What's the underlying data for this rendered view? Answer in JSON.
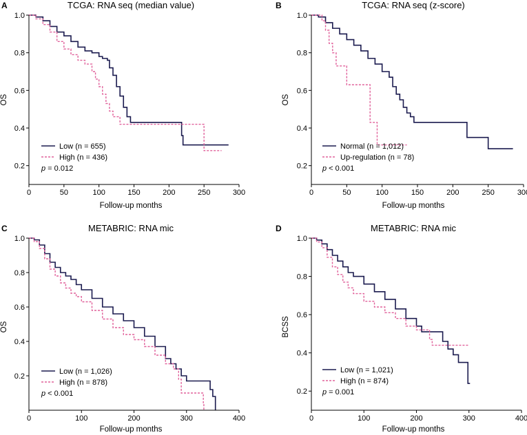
{
  "chart_data": [
    {
      "panel": "A",
      "type": "line",
      "title": "TCGA: RNA seq (median value)",
      "xlabel": "Follow-up months",
      "ylabel": "OS",
      "xlim": [
        0,
        300
      ],
      "ylim": [
        0.1,
        1.0
      ],
      "xticks": [
        0,
        50,
        100,
        150,
        200,
        250,
        300
      ],
      "yticks": [
        0.2,
        0.4,
        0.6,
        0.8,
        1.0
      ],
      "pvalue_prefix": "p",
      "pvalue_text": " = 0.012",
      "series": [
        {
          "name": "Low (n = 655)",
          "style": "solid",
          "color": "#1a1a4e",
          "points": [
            [
              0,
              1.0
            ],
            [
              10,
              0.99
            ],
            [
              20,
              0.97
            ],
            [
              30,
              0.94
            ],
            [
              40,
              0.91
            ],
            [
              50,
              0.89
            ],
            [
              60,
              0.86
            ],
            [
              70,
              0.83
            ],
            [
              80,
              0.81
            ],
            [
              90,
              0.8
            ],
            [
              100,
              0.78
            ],
            [
              105,
              0.77
            ],
            [
              112,
              0.76
            ],
            [
              115,
              0.72
            ],
            [
              120,
              0.68
            ],
            [
              125,
              0.62
            ],
            [
              130,
              0.57
            ],
            [
              135,
              0.51
            ],
            [
              140,
              0.46
            ],
            [
              145,
              0.43
            ],
            [
              215,
              0.43
            ],
            [
              218,
              0.36
            ],
            [
              220,
              0.31
            ],
            [
              285,
              0.31
            ]
          ]
        },
        {
          "name": "High (n = 436)",
          "style": "dashed",
          "color": "#e0609a",
          "points": [
            [
              0,
              1.0
            ],
            [
              10,
              0.98
            ],
            [
              20,
              0.95
            ],
            [
              30,
              0.91
            ],
            [
              40,
              0.86
            ],
            [
              50,
              0.82
            ],
            [
              60,
              0.79
            ],
            [
              70,
              0.76
            ],
            [
              80,
              0.74
            ],
            [
              90,
              0.7
            ],
            [
              95,
              0.66
            ],
            [
              100,
              0.62
            ],
            [
              105,
              0.58
            ],
            [
              110,
              0.53
            ],
            [
              115,
              0.49
            ],
            [
              120,
              0.46
            ],
            [
              130,
              0.42
            ],
            [
              225,
              0.42
            ],
            [
              248,
              0.42
            ],
            [
              250,
              0.28
            ],
            [
              275,
              0.28
            ]
          ]
        }
      ]
    },
    {
      "panel": "B",
      "type": "line",
      "title": "TCGA: RNA seq (z-score)",
      "xlabel": "Follow-up months",
      "ylabel": "OS",
      "xlim": [
        0,
        300
      ],
      "ylim": [
        0.1,
        1.0
      ],
      "xticks": [
        0,
        50,
        100,
        150,
        200,
        250,
        300
      ],
      "yticks": [
        0.2,
        0.4,
        0.6,
        0.8,
        1.0
      ],
      "pvalue_prefix": "p",
      "pvalue_text": " < 0.001",
      "series": [
        {
          "name": "Normal (n = 1,012)",
          "style": "solid",
          "color": "#1a1a4e",
          "points": [
            [
              0,
              1.0
            ],
            [
              10,
              0.99
            ],
            [
              20,
              0.96
            ],
            [
              30,
              0.93
            ],
            [
              40,
              0.9
            ],
            [
              50,
              0.87
            ],
            [
              60,
              0.84
            ],
            [
              70,
              0.81
            ],
            [
              80,
              0.77
            ],
            [
              90,
              0.74
            ],
            [
              100,
              0.7
            ],
            [
              110,
              0.67
            ],
            [
              115,
              0.62
            ],
            [
              120,
              0.58
            ],
            [
              125,
              0.55
            ],
            [
              130,
              0.51
            ],
            [
              135,
              0.48
            ],
            [
              140,
              0.46
            ],
            [
              145,
              0.43
            ],
            [
              215,
              0.43
            ],
            [
              220,
              0.35
            ],
            [
              247,
              0.35
            ],
            [
              250,
              0.29
            ],
            [
              285,
              0.29
            ]
          ]
        },
        {
          "name": "Up-regulation (n = 78)",
          "style": "dashed",
          "color": "#e0609a",
          "points": [
            [
              0,
              1.0
            ],
            [
              15,
              0.97
            ],
            [
              20,
              0.92
            ],
            [
              25,
              0.85
            ],
            [
              30,
              0.8
            ],
            [
              35,
              0.73
            ],
            [
              45,
              0.73
            ],
            [
              50,
              0.63
            ],
            [
              80,
              0.63
            ],
            [
              83,
              0.43
            ],
            [
              90,
              0.43
            ],
            [
              93,
              0.31
            ],
            [
              135,
              0.31
            ]
          ]
        }
      ]
    },
    {
      "panel": "C",
      "type": "line",
      "title": "METABRIC: RNA mic",
      "xlabel": "Follow-up months",
      "ylabel": "OS",
      "xlim": [
        0,
        400
      ],
      "ylim": [
        0.0,
        1.0
      ],
      "xticks": [
        0,
        100,
        200,
        300,
        400
      ],
      "yticks": [
        0.2,
        0.4,
        0.6,
        0.8,
        1.0
      ],
      "pvalue_prefix": "p",
      "pvalue_text": " < 0.001",
      "series": [
        {
          "name": "Low (n = 1,026)",
          "style": "solid",
          "color": "#1a1a4e",
          "points": [
            [
              0,
              1.0
            ],
            [
              10,
              0.99
            ],
            [
              20,
              0.96
            ],
            [
              30,
              0.91
            ],
            [
              40,
              0.86
            ],
            [
              50,
              0.83
            ],
            [
              60,
              0.8
            ],
            [
              70,
              0.78
            ],
            [
              80,
              0.76
            ],
            [
              90,
              0.73
            ],
            [
              100,
              0.7
            ],
            [
              120,
              0.65
            ],
            [
              140,
              0.6
            ],
            [
              160,
              0.56
            ],
            [
              180,
              0.52
            ],
            [
              200,
              0.48
            ],
            [
              220,
              0.43
            ],
            [
              240,
              0.37
            ],
            [
              260,
              0.3
            ],
            [
              270,
              0.27
            ],
            [
              280,
              0.24
            ],
            [
              290,
              0.2
            ],
            [
              300,
              0.17
            ],
            [
              340,
              0.17
            ],
            [
              345,
              0.12
            ],
            [
              350,
              0.08
            ],
            [
              355,
              0.0
            ]
          ]
        },
        {
          "name": "High (n = 878)",
          "style": "dashed",
          "color": "#e0609a",
          "points": [
            [
              0,
              1.0
            ],
            [
              10,
              0.98
            ],
            [
              20,
              0.94
            ],
            [
              30,
              0.88
            ],
            [
              40,
              0.82
            ],
            [
              50,
              0.78
            ],
            [
              60,
              0.74
            ],
            [
              70,
              0.71
            ],
            [
              80,
              0.68
            ],
            [
              90,
              0.66
            ],
            [
              100,
              0.63
            ],
            [
              120,
              0.58
            ],
            [
              140,
              0.53
            ],
            [
              160,
              0.48
            ],
            [
              180,
              0.44
            ],
            [
              200,
              0.41
            ],
            [
              220,
              0.37
            ],
            [
              240,
              0.32
            ],
            [
              260,
              0.27
            ],
            [
              275,
              0.24
            ],
            [
              285,
              0.18
            ],
            [
              290,
              0.1
            ],
            [
              330,
              0.1
            ],
            [
              332,
              0.04
            ],
            [
              333,
              0.0
            ]
          ]
        }
      ]
    },
    {
      "panel": "D",
      "type": "line",
      "title": "METABRIC: RNA mic",
      "xlabel": "Follow-up months",
      "ylabel": "BCSS",
      "xlim": [
        0,
        400
      ],
      "ylim": [
        0.1,
        1.0
      ],
      "xticks": [
        0,
        100,
        200,
        300,
        400
      ],
      "yticks": [
        0.2,
        0.4,
        0.6,
        0.8,
        1.0
      ],
      "pvalue_prefix": "p",
      "pvalue_text": " = 0.001",
      "series": [
        {
          "name": "Low (n = 1,021)",
          "style": "solid",
          "color": "#1a1a4e",
          "points": [
            [
              0,
              1.0
            ],
            [
              10,
              0.99
            ],
            [
              20,
              0.97
            ],
            [
              30,
              0.94
            ],
            [
              40,
              0.91
            ],
            [
              50,
              0.88
            ],
            [
              60,
              0.85
            ],
            [
              70,
              0.82
            ],
            [
              80,
              0.8
            ],
            [
              100,
              0.76
            ],
            [
              120,
              0.72
            ],
            [
              140,
              0.68
            ],
            [
              160,
              0.63
            ],
            [
              180,
              0.58
            ],
            [
              200,
              0.54
            ],
            [
              210,
              0.51
            ],
            [
              240,
              0.51
            ],
            [
              250,
              0.46
            ],
            [
              260,
              0.42
            ],
            [
              270,
              0.39
            ],
            [
              280,
              0.35
            ],
            [
              295,
              0.35
            ],
            [
              298,
              0.24
            ],
            [
              302,
              0.24
            ]
          ]
        },
        {
          "name": "High (n = 874)",
          "style": "dashed",
          "color": "#e0609a",
          "points": [
            [
              0,
              1.0
            ],
            [
              10,
              0.98
            ],
            [
              20,
              0.95
            ],
            [
              30,
              0.9
            ],
            [
              40,
              0.85
            ],
            [
              50,
              0.81
            ],
            [
              60,
              0.77
            ],
            [
              70,
              0.74
            ],
            [
              80,
              0.71
            ],
            [
              100,
              0.67
            ],
            [
              120,
              0.64
            ],
            [
              140,
              0.61
            ],
            [
              160,
              0.58
            ],
            [
              180,
              0.54
            ],
            [
              200,
              0.52
            ],
            [
              220,
              0.52
            ],
            [
              225,
              0.47
            ],
            [
              230,
              0.44
            ],
            [
              300,
              0.44
            ]
          ]
        }
      ]
    }
  ]
}
